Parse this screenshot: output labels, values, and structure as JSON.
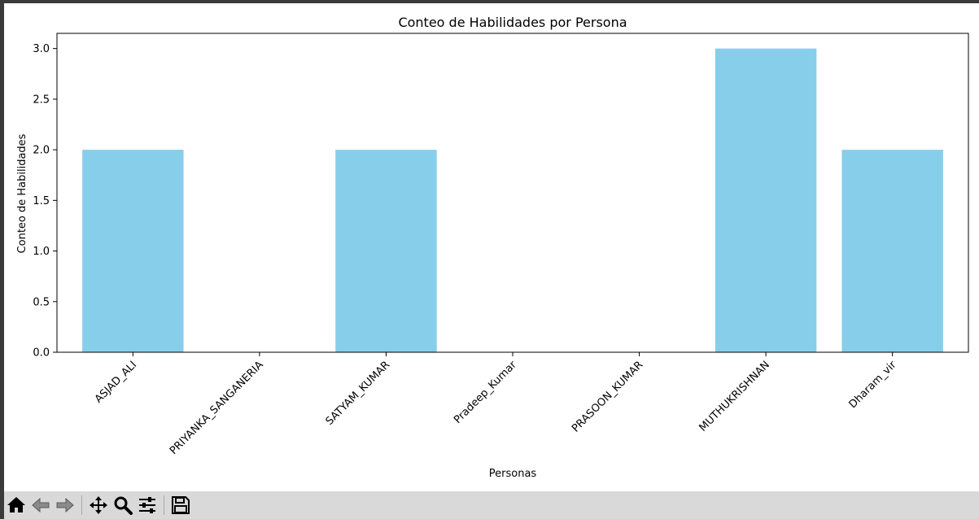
{
  "chart_data": {
    "type": "bar",
    "title": "Conteo de Habilidades por Persona",
    "xlabel": "Personas",
    "ylabel": "Conteo de Habilidades",
    "categories": [
      "ASJAD_ALI",
      "PRIYANKA_SANGANERIA",
      "SATYAM_KUMAR",
      "Pradeep_Kumar",
      "PRASOON_KUMAR",
      "MUTHUKRISHNAN",
      "Dharam_vir"
    ],
    "values": [
      2,
      0,
      2,
      0,
      0,
      3,
      2
    ],
    "ylim": [
      0,
      3.15
    ],
    "yticks": [
      "0.0",
      "0.5",
      "1.0",
      "1.5",
      "2.0",
      "2.5",
      "3.0"
    ],
    "bar_color": "#87ceeb",
    "grid": false,
    "xtick_rotation_deg": 45
  },
  "toolbar": {
    "buttons": [
      "home-icon",
      "back-icon",
      "forward-icon",
      "pan-icon",
      "zoom-icon",
      "configure-icon",
      "save-icon"
    ]
  }
}
